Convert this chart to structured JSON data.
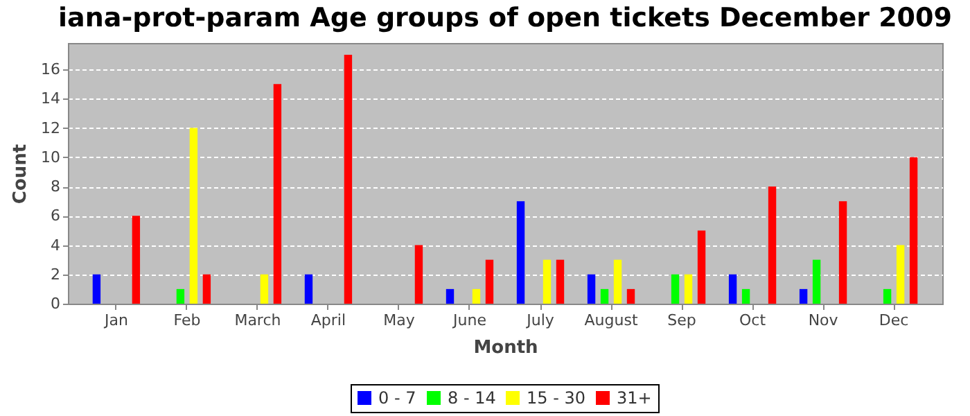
{
  "chart_data": {
    "type": "bar",
    "title": "iana-prot-param Age groups of open tickets December 2009",
    "xlabel": "Month",
    "ylabel": "Count",
    "categories": [
      "Jan",
      "Feb",
      "March",
      "April",
      "May",
      "June",
      "July",
      "August",
      "Sep",
      "Oct",
      "Nov",
      "Dec"
    ],
    "series": [
      {
        "name": "0 - 7",
        "color": "#0000ff",
        "values": [
          2,
          0,
          0,
          2,
          0,
          1,
          7,
          2,
          0,
          2,
          1,
          0
        ]
      },
      {
        "name": "8 - 14",
        "color": "#00ff00",
        "values": [
          0,
          1,
          0,
          0,
          0,
          0,
          0,
          1,
          2,
          1,
          3,
          1
        ]
      },
      {
        "name": "15 - 30",
        "color": "#ffff00",
        "values": [
          0,
          12,
          2,
          0,
          0,
          1,
          3,
          3,
          2,
          0,
          0,
          4
        ]
      },
      {
        "name": "31+",
        "color": "#ff0000",
        "values": [
          6,
          2,
          15,
          17,
          4,
          3,
          3,
          1,
          5,
          8,
          7,
          10
        ]
      }
    ],
    "ylim": [
      0,
      17.8
    ],
    "yticks": [
      0,
      2,
      4,
      6,
      8,
      10,
      12,
      14,
      16
    ],
    "grid": "y",
    "legend": "bottom"
  }
}
